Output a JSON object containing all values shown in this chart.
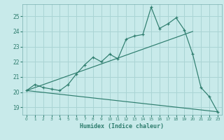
{
  "title": "",
  "xlabel": "Humidex (Indice chaleur)",
  "ylabel": "",
  "bg_color": "#c8eaea",
  "grid_color": "#aad4d4",
  "line_color": "#2e7d6e",
  "xlim": [
    -0.5,
    23.5
  ],
  "ylim": [
    18.5,
    25.8
  ],
  "yticks": [
    19,
    20,
    21,
    22,
    23,
    24,
    25
  ],
  "xticks": [
    0,
    1,
    2,
    3,
    4,
    5,
    6,
    7,
    8,
    9,
    10,
    11,
    12,
    13,
    14,
    15,
    16,
    17,
    18,
    19,
    20,
    21,
    22,
    23
  ],
  "series1_x": [
    0,
    1,
    2,
    3,
    4,
    5,
    6,
    7,
    8,
    9,
    10,
    11,
    12,
    13,
    14,
    15,
    16,
    17,
    18,
    19,
    20,
    21,
    22,
    23
  ],
  "series1_y": [
    20.1,
    20.5,
    20.3,
    20.2,
    20.1,
    20.5,
    21.2,
    21.8,
    22.3,
    22.0,
    22.5,
    22.2,
    23.5,
    23.7,
    23.8,
    25.6,
    24.2,
    24.5,
    24.9,
    24.1,
    22.5,
    20.3,
    19.7,
    18.7
  ],
  "series2_x": [
    0,
    20
  ],
  "series2_y": [
    20.1,
    24.0
  ],
  "series3_x": [
    0,
    23
  ],
  "series3_y": [
    20.1,
    18.7
  ],
  "series1_markers_x": [
    0,
    1,
    2,
    3,
    4,
    5,
    6,
    7,
    8,
    9,
    10,
    11,
    12,
    13,
    14,
    15,
    16,
    17,
    18,
    19,
    20,
    21,
    22,
    23
  ],
  "series1_markers_y": [
    20.1,
    20.5,
    20.3,
    20.2,
    20.1,
    20.5,
    21.2,
    21.8,
    22.3,
    22.0,
    22.5,
    22.2,
    23.5,
    23.7,
    23.8,
    25.6,
    24.2,
    24.5,
    24.9,
    24.1,
    22.5,
    20.3,
    19.7,
    18.7
  ]
}
